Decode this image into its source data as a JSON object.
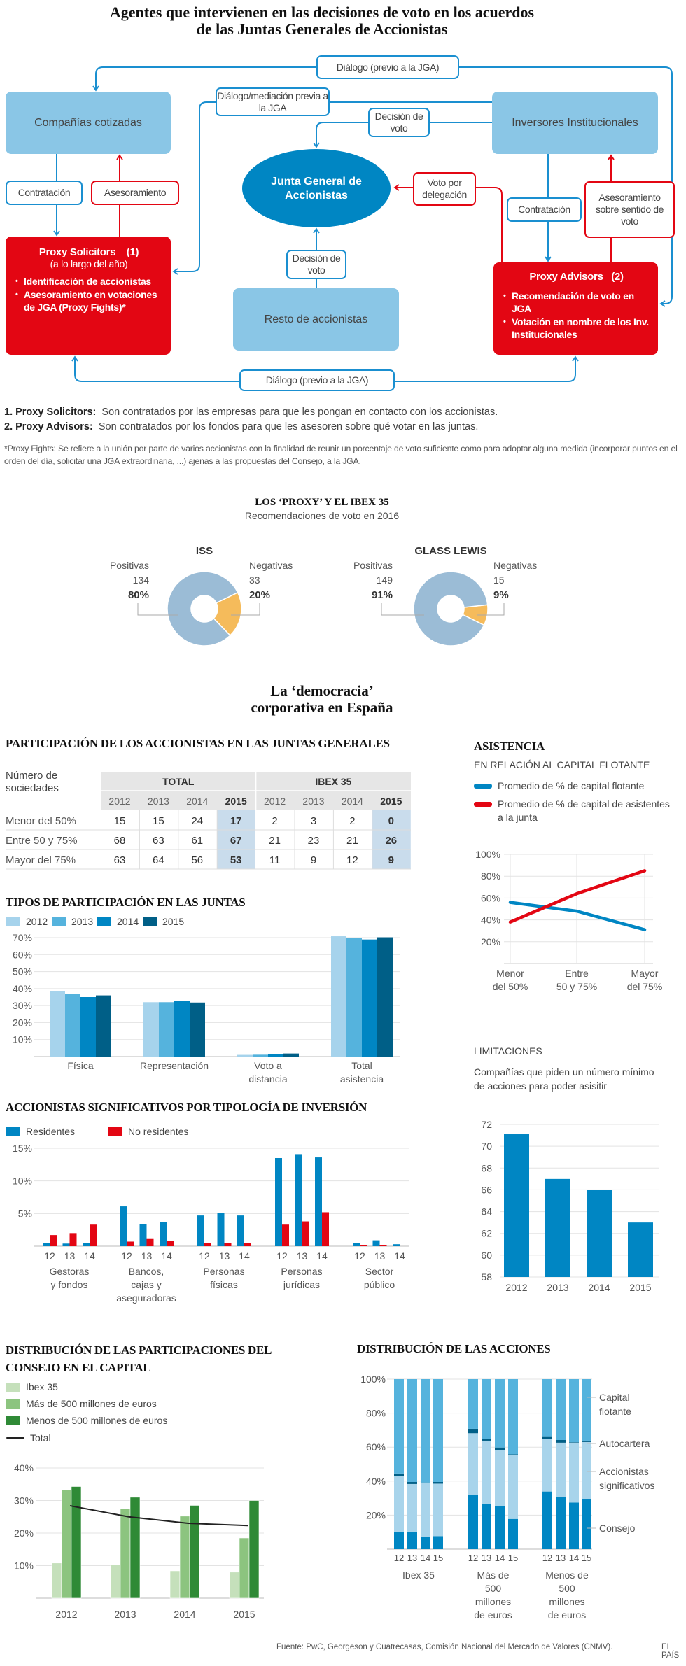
{
  "header": {
    "title_line1": "Agentes que intervienen en las decisiones de voto en los acuerdos",
    "title_line2": "de las Juntas Generales de Accionistas"
  },
  "diagram": {
    "companias": "Compañías cotizadas",
    "inversores": "Inversores Institucionales",
    "junta": "Junta General de Accionistas",
    "resto": "Resto de accionistas",
    "proxy_solicitors": {
      "title": "Proxy Solicitors",
      "num": "(1)",
      "subtitle": "(a lo largo del año)",
      "bullets": [
        "Identificación de accionistas",
        "Asesoramiento en votaciones de JGA (Proxy Fights)*"
      ]
    },
    "proxy_advisors": {
      "title": "Proxy Advisors",
      "num": "(2)",
      "bullets": [
        "Recomendación de voto en JGA",
        "Votación en nombre de los Inv. Institucionales"
      ]
    },
    "labels": {
      "dialogo_top": "Diálogo (previo a la JGA)",
      "dialogo_mediacion": "Diálogo/mediación previa a la JGA",
      "decision_top": "Decisión de voto",
      "contratacion_left": "Contratación",
      "asesoramiento_left": "Asesoramiento",
      "voto_delegacion": "Voto por delegación",
      "contratacion_right": "Contratación",
      "asesoramiento_right": "Asesoramiento sobre sentido de voto",
      "decision_bottom": "Decisión de voto",
      "dialogo_bottom": "Diálogo (previo a la JGA)"
    },
    "colors": {
      "box": "#8ac6e6",
      "red": "#e30613",
      "ellipse": "#0086c3",
      "line": "#1a8fd0"
    }
  },
  "notes": {
    "n1_label": "1. Proxy Solicitors:",
    "n1_text": "Son contratados por las empresas para que les pongan en contacto con los accionistas.",
    "n2_label": "2. Proxy Advisors:",
    "n2_text": "Son contratados por los fondos para que les asesoren sobre qué votar en las juntas.",
    "proxy_fights": "*Proxy Fights:  Se refiere a la unión por parte de varios accionistas con la finalidad de reunir un porcentaje de voto suficiente como para adoptar alguna medida (incorporar puntos en el orden del día, solicitar una JGA extraordinaria, ...) ajenas a las propuestas del Consejo, a la JGA."
  },
  "proxy_section": {
    "title": "LOS ‘PROXY’ Y EL IBEX 35",
    "subtitle": "Recomendaciones de voto en 2016"
  },
  "section2": {
    "title_line1": "La ‘democracia’",
    "title_line2": "corporativa en España"
  },
  "participacion_table": {
    "title": "PARTICIPACIÓN DE LOS ACCIONISTAS EN LAS JUNTAS GENERALES",
    "row_header": "Número de sociedades",
    "groups": [
      "TOTAL",
      "IBEX 35"
    ],
    "years": [
      "2012",
      "2013",
      "2014",
      "2015",
      "2012",
      "2013",
      "2014",
      "2015"
    ],
    "rows": [
      {
        "label": "Menor del 50%",
        "values": [
          "15",
          "15",
          "24",
          "17",
          "2",
          "3",
          "2",
          "0"
        ]
      },
      {
        "label": "Entre 50 y 75%",
        "values": [
          "68",
          "63",
          "61",
          "67",
          "21",
          "23",
          "21",
          "26"
        ]
      },
      {
        "label": "Mayor del 75%",
        "values": [
          "63",
          "64",
          "56",
          "53",
          "11",
          "9",
          "12",
          "9"
        ]
      }
    ]
  },
  "footer": {
    "source": "Fuente: PwC, Georgeson y Cuatrecasas, Comisión Nacional del Mercado de Valores (CNMV).",
    "brand": "EL PAÍS"
  },
  "chart_data": [
    {
      "id": "iss",
      "type": "pie",
      "title": "ISS",
      "slices": [
        {
          "name": "Positivas",
          "count": "134",
          "pct_label": "80%",
          "value": 80,
          "color": "#9bbcd6"
        },
        {
          "name": "Negativas",
          "count": "33",
          "pct_label": "20%",
          "value": 20,
          "color": "#f5bb5b"
        }
      ]
    },
    {
      "id": "glass",
      "type": "pie",
      "title": "GLASS LEWIS",
      "slices": [
        {
          "name": "Positivas",
          "count": "149",
          "pct_label": "91%",
          "value": 91,
          "color": "#9bbcd6"
        },
        {
          "name": "Negativas",
          "count": "15",
          "pct_label": "9%",
          "value": 9,
          "color": "#f5bb5b"
        }
      ]
    },
    {
      "id": "tipos",
      "type": "bar",
      "title": "TIPOS DE PARTICIPACIÓN EN LAS JUNTAS",
      "categories": [
        "Física",
        "Representación",
        "Voto a distancia",
        "Total asistencia"
      ],
      "series": [
        {
          "name": "2012",
          "color": "#a6d3ec",
          "values": [
            38.3,
            32,
            1,
            70.8
          ]
        },
        {
          "name": "2013",
          "color": "#55b3dd",
          "values": [
            37,
            32,
            1.1,
            70
          ]
        },
        {
          "name": "2014",
          "color": "#0086c3",
          "values": [
            35,
            32.8,
            1.3,
            68.9
          ]
        },
        {
          "name": "2015",
          "color": "#005f87",
          "values": [
            36,
            31.8,
            1.8,
            70.2
          ]
        }
      ],
      "yticks": [
        "10%",
        "20%",
        "30%",
        "40%",
        "50%",
        "60%",
        "70%"
      ],
      "ylim": [
        0,
        70
      ]
    },
    {
      "id": "accionistas",
      "type": "bar",
      "title": "ACCIONISTAS SIGNIFICATIVOS POR TIPOLOGÍA DE INVERSIÓN",
      "categories": [
        "Gestoras y fondos",
        "Bancos, cajas y aseguradoras",
        "Personas físicas",
        "Personas jurídicas",
        "Sector público"
      ],
      "years": [
        "12",
        "13",
        "14"
      ],
      "series": [
        {
          "name": "Residentes",
          "color": "#0086c3",
          "values": [
            [
              0.5,
              0.4,
              0.5
            ],
            [
              6.1,
              3.4,
              3.7
            ],
            [
              4.7,
              5.1,
              4.7
            ],
            [
              13.5,
              14.1,
              13.6
            ],
            [
              0.5,
              0.9,
              0.3
            ]
          ]
        },
        {
          "name": "No residentes",
          "color": "#e30613",
          "values": [
            [
              1.7,
              2.0,
              3.3
            ],
            [
              0.7,
              1.1,
              0.8
            ],
            [
              0.5,
              0.5,
              0.5
            ],
            [
              3.3,
              3.8,
              5.2
            ],
            [
              0.2,
              0.2,
              0
            ]
          ]
        }
      ],
      "yticks": [
        "5%",
        "10%",
        "15%"
      ],
      "ylim": [
        0,
        15
      ]
    },
    {
      "id": "consejo",
      "type": "bar",
      "title": "DISTRIBUCIÓN DE LAS PARTICIPACIONES DEL CONSEJO EN EL CAPITAL",
      "categories": [
        "2012",
        "2013",
        "2014",
        "2015"
      ],
      "series": [
        {
          "name": "Ibex 35",
          "color": "#c5e0bb",
          "values": [
            10.8,
            10.3,
            8.4,
            8.0
          ]
        },
        {
          "name": "Más de 500 millones de euros",
          "color": "#8cc47f",
          "values": [
            33.3,
            27.5,
            25.2,
            18.5
          ]
        },
        {
          "name": "Menos de 500 millones de euros",
          "color": "#2f8a36",
          "values": [
            34.3,
            31.0,
            28.5,
            30.0
          ]
        }
      ],
      "line": {
        "name": "Total",
        "color": "#222222",
        "values": [
          28.4,
          25.0,
          23.0,
          22.3
        ]
      },
      "yticks": [
        "10%",
        "20%",
        "30%",
        "40%"
      ],
      "ylim": [
        0,
        40
      ]
    },
    {
      "id": "acciones",
      "type": "bar",
      "stacked": true,
      "title": "DISTRIBUCIÓN DE LAS ACCIONES",
      "groups": [
        "Ibex 35",
        "Más de 500 millones de euros",
        "Menos de 500 millones de euros"
      ],
      "years": [
        "12",
        "13",
        "14",
        "15"
      ],
      "series": [
        {
          "name": "Consejo",
          "color": "#0086c3",
          "values": [
            [
              10.3,
              10.3,
              7,
              7.7
            ],
            [
              31.8,
              26.5,
              25.3,
              17.8
            ],
            [
              33.9,
              30.6,
              27.4,
              29.3
            ]
          ]
        },
        {
          "name": "Accionistas significativos",
          "color": "#a8d4eb",
          "values": [
            [
              32.7,
              28,
              31.8,
              30.8
            ],
            [
              36.4,
              37.3,
              32.9,
              37.6
            ],
            [
              30.9,
              32,
              35.2,
              33.7
            ]
          ]
        },
        {
          "name": "Autocartera",
          "color": "#005f87",
          "values": [
            [
              1.5,
              1.2,
              0.4,
              1.0
            ],
            [
              2.6,
              1.1,
              1.6,
              0.4
            ],
            [
              1.2,
              1.6,
              0.3,
              0.8
            ]
          ]
        },
        {
          "name": "Capital flotante",
          "color": "#55b3dd",
          "values": [
            [
              55.5,
              60.5,
              60.8,
              60.5
            ],
            [
              29.2,
              35.1,
              40.2,
              44.2
            ],
            [
              34,
              35.8,
              37.1,
              36.2
            ]
          ]
        }
      ],
      "yticks": [
        "20%",
        "40%",
        "60%",
        "80%",
        "100%"
      ],
      "ylim": [
        0,
        100
      ]
    },
    {
      "id": "asistencia",
      "type": "line",
      "title": "ASISTENCIA",
      "subtitle": "EN RELACIÓN AL CAPITAL FLOTANTE",
      "categories": [
        "Menor del 50%",
        "Entre 50 y 75%",
        "Mayor del 75%"
      ],
      "series": [
        {
          "name": "Promedio de % de capital flotante",
          "color": "#0086c3",
          "values": [
            56,
            48,
            31
          ]
        },
        {
          "name": "Promedio de % de capital de asistentes a la junta",
          "color": "#e30613",
          "values": [
            38,
            64,
            85
          ]
        }
      ],
      "yticks": [
        "20%",
        "40%",
        "60%",
        "80%",
        "100%"
      ],
      "ylim": [
        0,
        100
      ]
    },
    {
      "id": "limitaciones",
      "type": "bar",
      "title": "LIMITACIONES",
      "subtitle": "Compañías que piden un número mínimo de acciones para poder asisitir",
      "categories": [
        "2012",
        "2013",
        "2014",
        "2015"
      ],
      "values": [
        71.1,
        67,
        66,
        63
      ],
      "color": "#0086c3",
      "yticks": [
        "58",
        "60",
        "62",
        "64",
        "66",
        "68",
        "70",
        "72"
      ],
      "ylim": [
        58,
        72
      ]
    }
  ]
}
